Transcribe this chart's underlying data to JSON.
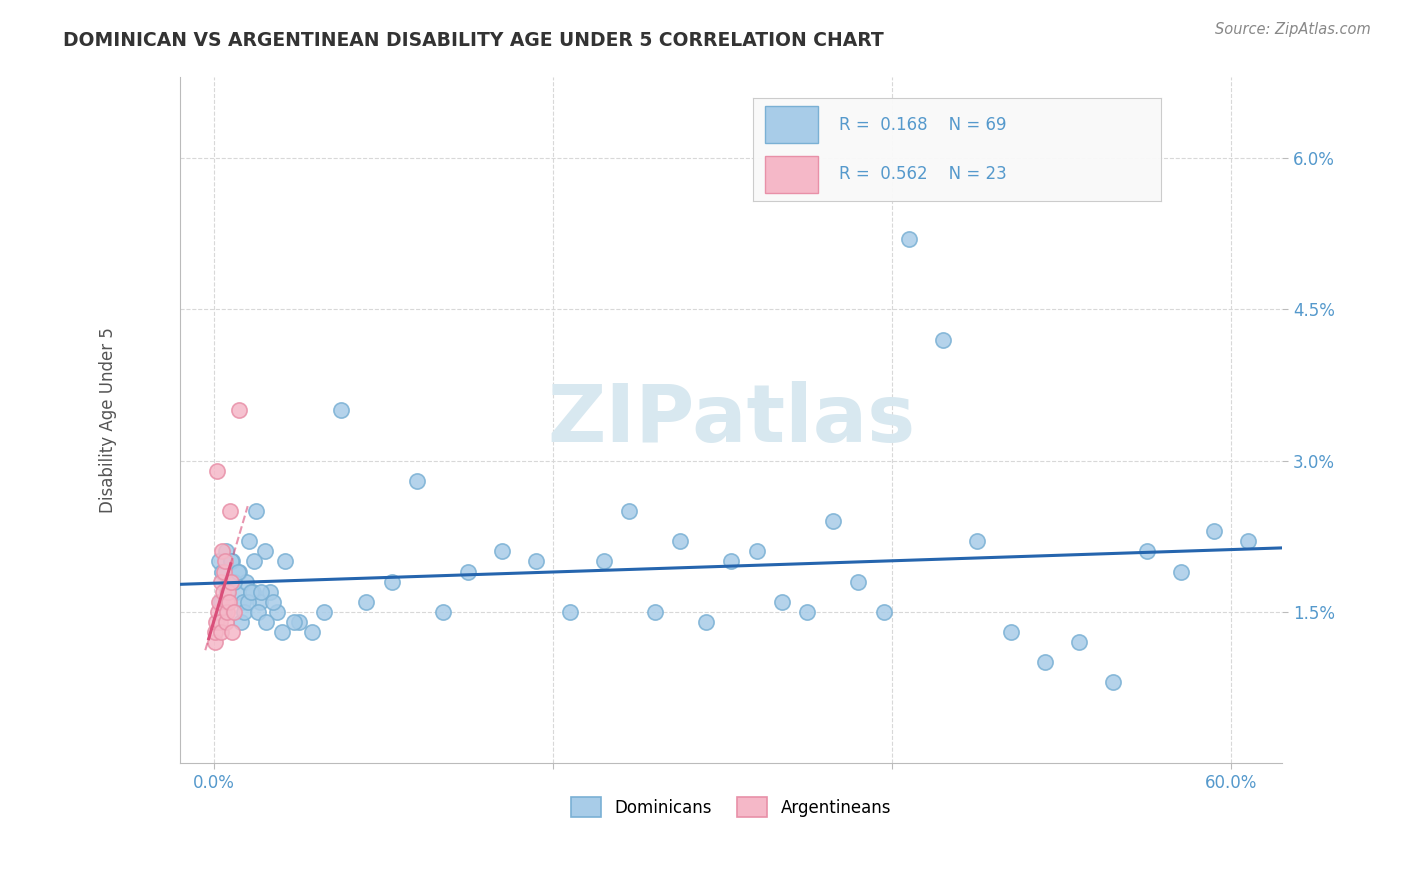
{
  "title": "DOMINICAN VS ARGENTINEAN DISABILITY AGE UNDER 5 CORRELATION CHART",
  "source": "Source: ZipAtlas.com",
  "ylabel_label": "Disability Age Under 5",
  "x_tick_labels": [
    "0.0%",
    "",
    "",
    "60.0%"
  ],
  "x_tick_values": [
    0.0,
    20.0,
    40.0,
    60.0
  ],
  "y_tick_labels": [
    "1.5%",
    "3.0%",
    "4.5%",
    "6.0%"
  ],
  "y_tick_values": [
    1.5,
    3.0,
    4.5,
    6.0
  ],
  "xlim": [
    -2.0,
    63.0
  ],
  "ylim": [
    0.0,
    6.8
  ],
  "dominican_R": 0.168,
  "dominican_N": 69,
  "argentinean_R": 0.562,
  "argentinean_N": 23,
  "blue_marker_color": "#a8cce8",
  "blue_marker_edge": "#7ab0d4",
  "pink_marker_color": "#f5b8c8",
  "pink_marker_edge": "#e890a8",
  "blue_line_color": "#2565ae",
  "pink_line_color": "#d94f7a",
  "legend_blue_label": "Dominicans",
  "legend_pink_label": "Argentineans",
  "watermark_color": "#d8e8f0",
  "title_color": "#333333",
  "source_color": "#888888",
  "grid_color": "#d8d8d8",
  "tick_color": "#5599cc",
  "dom_x": [
    0.3,
    0.5,
    0.7,
    0.9,
    1.1,
    1.3,
    1.5,
    1.7,
    1.9,
    2.1,
    2.3,
    2.5,
    2.7,
    3.0,
    3.3,
    3.7,
    4.2,
    5.0,
    5.8,
    6.5,
    7.5,
    9.0,
    10.5,
    12.0,
    13.5,
    15.0,
    17.0,
    19.0,
    21.0,
    23.0,
    24.5,
    26.0,
    27.5,
    29.0,
    30.5,
    32.0,
    33.5,
    35.0,
    36.5,
    38.0,
    39.5,
    41.0,
    43.0,
    45.0,
    47.0,
    49.0,
    51.0,
    53.0,
    55.0,
    57.0,
    59.0,
    61.0,
    0.4,
    0.6,
    0.8,
    1.0,
    1.2,
    1.4,
    1.6,
    1.8,
    2.0,
    2.2,
    2.4,
    2.6,
    2.8,
    3.1,
    3.5,
    4.0,
    4.7
  ],
  "dom_y": [
    2.0,
    1.9,
    2.1,
    1.8,
    2.0,
    1.7,
    1.9,
    1.6,
    1.8,
    2.2,
    1.7,
    2.5,
    1.6,
    2.1,
    1.7,
    1.5,
    2.0,
    1.4,
    1.3,
    1.5,
    3.5,
    1.6,
    1.8,
    2.8,
    1.5,
    1.9,
    2.1,
    2.0,
    1.5,
    2.0,
    2.5,
    1.5,
    2.2,
    1.4,
    2.0,
    2.1,
    1.6,
    1.5,
    2.4,
    1.8,
    1.5,
    5.2,
    4.2,
    2.2,
    1.3,
    1.0,
    1.2,
    0.8,
    2.1,
    1.9,
    2.3,
    2.2,
    1.6,
    1.5,
    1.7,
    2.0,
    1.8,
    1.9,
    1.4,
    1.5,
    1.6,
    1.7,
    2.0,
    1.5,
    1.7,
    1.4,
    1.6,
    1.3,
    1.4
  ],
  "arg_x": [
    0.05,
    0.1,
    0.15,
    0.2,
    0.25,
    0.3,
    0.35,
    0.4,
    0.45,
    0.5,
    0.55,
    0.6,
    0.65,
    0.7,
    0.75,
    0.8,
    0.85,
    0.9,
    0.95,
    1.0,
    1.1,
    1.2,
    1.5
  ],
  "arg_y": [
    1.2,
    1.3,
    1.4,
    2.9,
    1.5,
    1.6,
    1.4,
    1.3,
    1.8,
    2.1,
    1.7,
    1.9,
    2.0,
    1.4,
    1.6,
    1.5,
    1.7,
    1.6,
    2.5,
    1.8,
    1.3,
    1.5,
    3.5
  ],
  "pink_line_x0": -0.3,
  "pink_line_x1": 1.6,
  "blue_line_x0": -2.0,
  "blue_line_x1": 63.0
}
